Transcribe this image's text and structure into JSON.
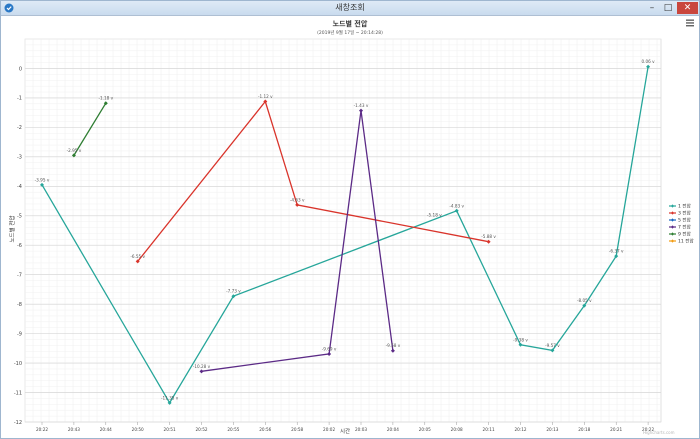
{
  "window": {
    "title": "새창조회",
    "min": "–",
    "max": "□",
    "close": "✕",
    "watermark": "Highcharts.com"
  },
  "icons": {
    "app": "app-icon",
    "menu": "hamburger-menu-icon"
  },
  "chart_data": {
    "type": "line",
    "title": "노드별 전압",
    "subtitle": "(2019년 9월 17일 ~ 20:14:28)",
    "xlabel": "시간",
    "ylabel": "노드별 전압",
    "categories": [
      "20:22",
      "20:43",
      "20:44",
      "20:50",
      "20:51",
      "20:52",
      "20:55",
      "20:56",
      "20:58",
      "20:02",
      "20:03",
      "20:04",
      "20:05",
      "20:08",
      "20:11",
      "20:12",
      "20:13",
      "20:18",
      "20:21",
      "20:22"
    ],
    "ylim": [
      -12,
      1
    ],
    "yticks": [
      0,
      -1,
      -2,
      -3,
      -4,
      -5,
      -6,
      -7,
      -8,
      -9,
      -10,
      -11,
      -12
    ],
    "grid": true,
    "legend": "right",
    "series": [
      {
        "name": "1 전압",
        "color": "#26a69a",
        "points": [
          [
            0,
            -3.95
          ],
          [
            4,
            -11.35
          ],
          [
            6,
            -7.73
          ],
          [
            13,
            -4.83
          ],
          [
            15,
            -9.38
          ],
          [
            16,
            -9.57
          ],
          [
            17,
            -8.05
          ],
          [
            18,
            -6.37
          ],
          [
            19,
            0.06
          ]
        ],
        "labels": [
          "-3.95 v",
          "-11.35 v",
          "-7.73 v",
          "-4.83 v",
          "-9.38 v",
          "-9.57 v",
          "-8.05 v",
          "-6.37 v",
          "0.06 v"
        ]
      },
      {
        "name": "3 전압",
        "color": "#d9342b",
        "points": [
          [
            3,
            -6.55
          ],
          [
            7,
            -1.12
          ],
          [
            8,
            -4.63
          ],
          [
            14,
            -5.88
          ]
        ],
        "labels": [
          "-6.55 v",
          "-1.12 v",
          "-4.63 v",
          "-5.88 v"
        ]
      },
      {
        "name": "5 전압",
        "color": "#1565c0",
        "points": [],
        "labels": []
      },
      {
        "name": "7 전압",
        "color": "#5b2a86",
        "points": [
          [
            5,
            -10.28
          ],
          [
            9,
            -9.69
          ],
          [
            10,
            -1.43
          ],
          [
            11,
            -9.58
          ]
        ],
        "labels": [
          "-10.28 v",
          "-9.69 v",
          "-1.43 v",
          "-9.58 v"
        ]
      },
      {
        "name": "9 전압",
        "color": "#2e7d32",
        "points": [
          [
            1,
            -2.95
          ],
          [
            2,
            -1.18
          ]
        ],
        "labels": [
          "-2.95 v",
          "-1.18 v"
        ]
      },
      {
        "name": "11 전압",
        "color": "#f39c12",
        "points": [],
        "labels": []
      }
    ],
    "annotations": [
      "-5.18 v"
    ]
  }
}
